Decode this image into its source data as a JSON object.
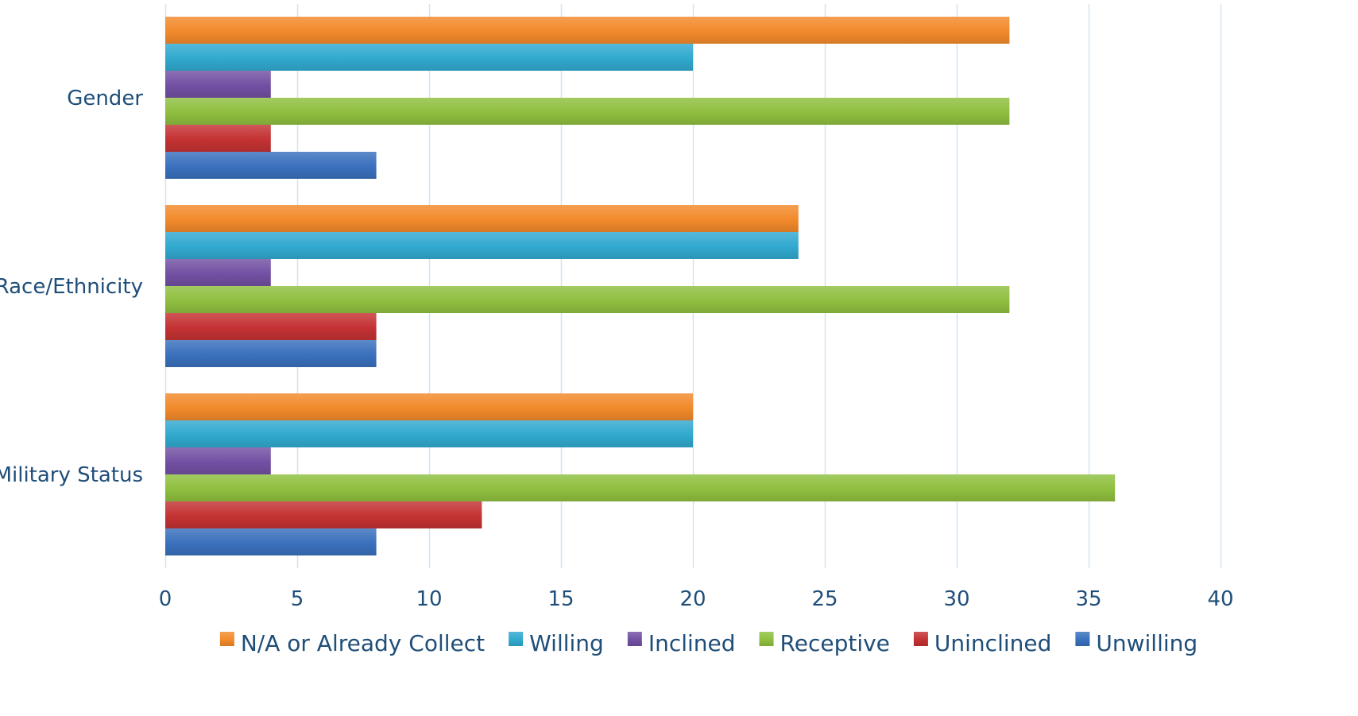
{
  "chart_data": {
    "type": "bar",
    "orientation": "horizontal",
    "title": "",
    "xlabel": "",
    "ylabel": "",
    "categories": [
      "Gender",
      "Race/Ethnicity",
      "Military Status"
    ],
    "series": [
      {
        "name": "N/A or Already Collect",
        "color": "#f28a2b",
        "values": [
          32,
          24,
          20
        ]
      },
      {
        "name": "Willing",
        "color": "#31a9cf",
        "values": [
          20,
          24,
          20
        ]
      },
      {
        "name": "Inclined",
        "color": "#7350a3",
        "values": [
          4,
          4,
          4
        ]
      },
      {
        "name": "Receptive",
        "color": "#8fbf3f",
        "values": [
          32,
          32,
          36
        ]
      },
      {
        "name": "Uninclined",
        "color": "#c43233",
        "values": [
          4,
          8,
          12
        ]
      },
      {
        "name": "Unwilling",
        "color": "#3a70bd",
        "values": [
          8,
          8,
          8
        ]
      }
    ],
    "xlim": [
      0,
      40
    ],
    "xticks": [
      0,
      5,
      10,
      15,
      20,
      25,
      30,
      35,
      40
    ],
    "grid": "vertical",
    "gridColor": "#d6e3f0",
    "legend": "bottom"
  }
}
